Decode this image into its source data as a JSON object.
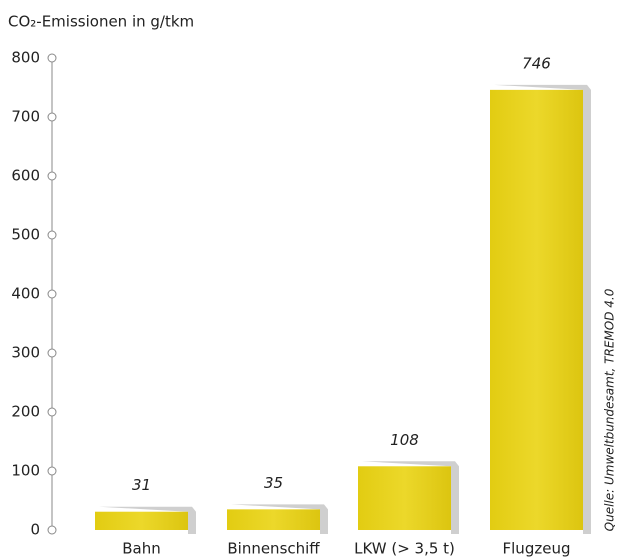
{
  "chart_data": {
    "type": "bar",
    "title": "CO₂-Emissionen in g/tkm",
    "categories": [
      "Bahn",
      "Binnenschiff",
      "LKW (> 3,5 t)",
      "Flugzeug"
    ],
    "values": [
      31,
      35,
      108,
      746
    ],
    "color": "#e6d11a",
    "ylim": [
      0,
      800
    ],
    "yticks": [
      0,
      100,
      200,
      300,
      400,
      500,
      600,
      700,
      800
    ],
    "source": "Quelle: Umweltbundesamt, TREMOD 4.0"
  }
}
